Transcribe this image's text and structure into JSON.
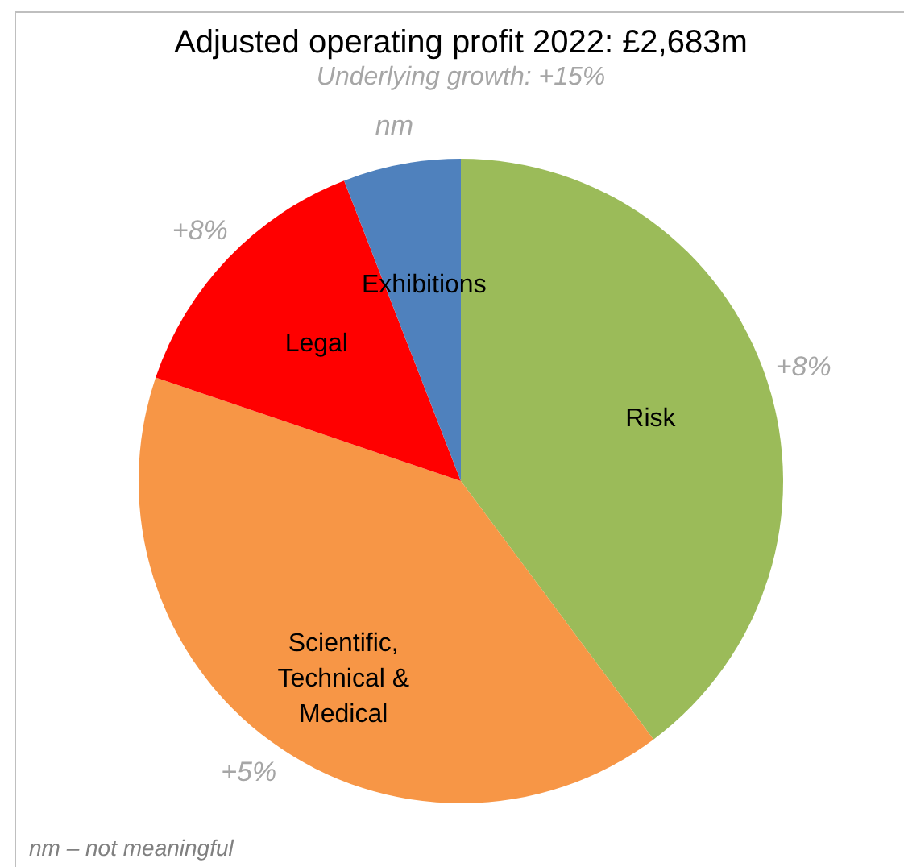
{
  "chart_data": {
    "type": "pie",
    "title": "Adjusted operating profit 2022: £2,683m",
    "subtitle": "Underlying growth: +15%",
    "categories": [
      "Risk",
      "Scientific, Technical & Medical",
      "Legal",
      "Exhibitions"
    ],
    "values": [
      39.8,
      40.4,
      13.9,
      5.9
    ],
    "colors": [
      "#9bbb59",
      "#f79646",
      "#ff0000",
      "#4f81bd"
    ],
    "annotations": [
      {
        "text": "+8%",
        "x": "Risk"
      },
      {
        "text": "+5%",
        "x": "Scientific, Technical & Medical"
      },
      {
        "text": "+8%",
        "x": "Legal"
      },
      {
        "text": "nm",
        "x": "Exhibitions"
      },
      "nm – not meaningful"
    ]
  }
}
